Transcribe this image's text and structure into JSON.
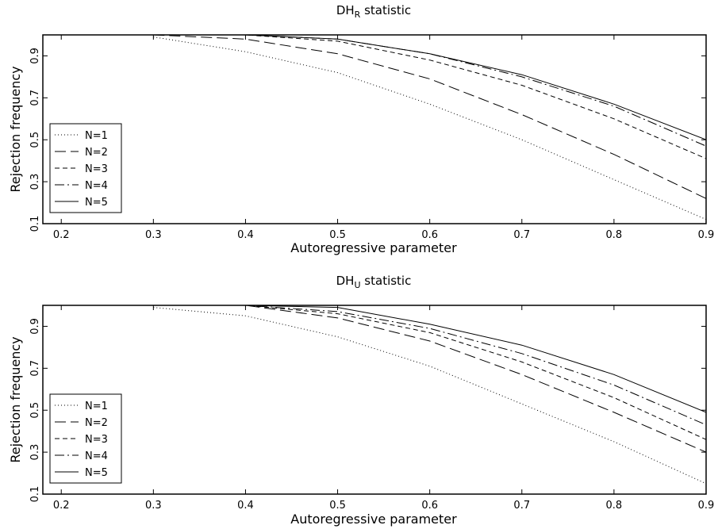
{
  "chart_data": [
    {
      "type": "line",
      "title_main": "DH",
      "title_sub": "R",
      "title_rest": " statistic",
      "xlabel": "Autoregressive parameter",
      "ylabel": "Rejection frequency",
      "xlim": [
        0.18,
        0.9
      ],
      "ylim": [
        0.1,
        1.0
      ],
      "xticks": [
        0.2,
        0.3,
        0.4,
        0.5,
        0.6,
        0.7,
        0.8,
        0.9
      ],
      "xtick_labels": [
        "0.2",
        "0.3",
        "0.4",
        "0.5",
        "0.6",
        "0.7",
        "0.8",
        "0.9"
      ],
      "yticks": [
        0.1,
        0.3,
        0.5,
        0.7,
        0.9
      ],
      "ytick_labels": [
        "0.1",
        "0.3",
        "0.5",
        "0.7",
        "0.9"
      ],
      "legend_position": "bottom-left",
      "x": [
        0.3,
        0.4,
        0.5,
        0.6,
        0.7,
        0.8,
        0.9
      ],
      "series": [
        {
          "name": "N=1",
          "style": "dotted",
          "values": [
            0.99,
            0.92,
            0.82,
            0.67,
            0.5,
            0.31,
            0.12
          ]
        },
        {
          "name": "N=2",
          "style": "long-dash",
          "values": [
            1.0,
            0.98,
            0.91,
            0.79,
            0.62,
            0.43,
            0.22
          ]
        },
        {
          "name": "N=3",
          "style": "short-dash",
          "values": [
            1.0,
            1.0,
            0.97,
            0.88,
            0.76,
            0.6,
            0.41
          ]
        },
        {
          "name": "N=4",
          "style": "dash-dot",
          "values": [
            1.0,
            1.0,
            0.98,
            0.91,
            0.8,
            0.66,
            0.47
          ]
        },
        {
          "name": "N=5",
          "style": "solid",
          "values": [
            1.0,
            1.0,
            0.98,
            0.91,
            0.81,
            0.67,
            0.5
          ]
        }
      ]
    },
    {
      "type": "line",
      "title_main": "DH",
      "title_sub": "U",
      "title_rest": " statistic",
      "xlabel": "Autoregressive parameter",
      "ylabel": "Rejection frequency",
      "xlim": [
        0.18,
        0.9
      ],
      "ylim": [
        0.1,
        1.0
      ],
      "xticks": [
        0.2,
        0.3,
        0.4,
        0.5,
        0.6,
        0.7,
        0.8,
        0.9
      ],
      "xtick_labels": [
        "0.2",
        "0.3",
        "0.4",
        "0.5",
        "0.6",
        "0.7",
        "0.8",
        "0.9"
      ],
      "yticks": [
        0.1,
        0.3,
        0.5,
        0.7,
        0.9
      ],
      "ytick_labels": [
        "0.1",
        "0.3",
        "0.5",
        "0.7",
        "0.9"
      ],
      "legend_position": "bottom-left",
      "x": [
        0.3,
        0.4,
        0.5,
        0.6,
        0.7,
        0.8,
        0.9
      ],
      "series": [
        {
          "name": "N=1",
          "style": "dotted",
          "values": [
            0.99,
            0.95,
            0.85,
            0.71,
            0.53,
            0.35,
            0.15
          ]
        },
        {
          "name": "N=2",
          "style": "long-dash",
          "values": [
            1.0,
            1.0,
            0.94,
            0.83,
            0.67,
            0.49,
            0.3
          ]
        },
        {
          "name": "N=3",
          "style": "short-dash",
          "values": [
            1.0,
            1.0,
            0.96,
            0.87,
            0.73,
            0.56,
            0.36
          ]
        },
        {
          "name": "N=4",
          "style": "dash-dot",
          "values": [
            1.0,
            1.0,
            0.97,
            0.89,
            0.77,
            0.62,
            0.43
          ]
        },
        {
          "name": "N=5",
          "style": "solid",
          "values": [
            1.0,
            1.0,
            0.99,
            0.91,
            0.81,
            0.67,
            0.49
          ]
        }
      ]
    }
  ]
}
